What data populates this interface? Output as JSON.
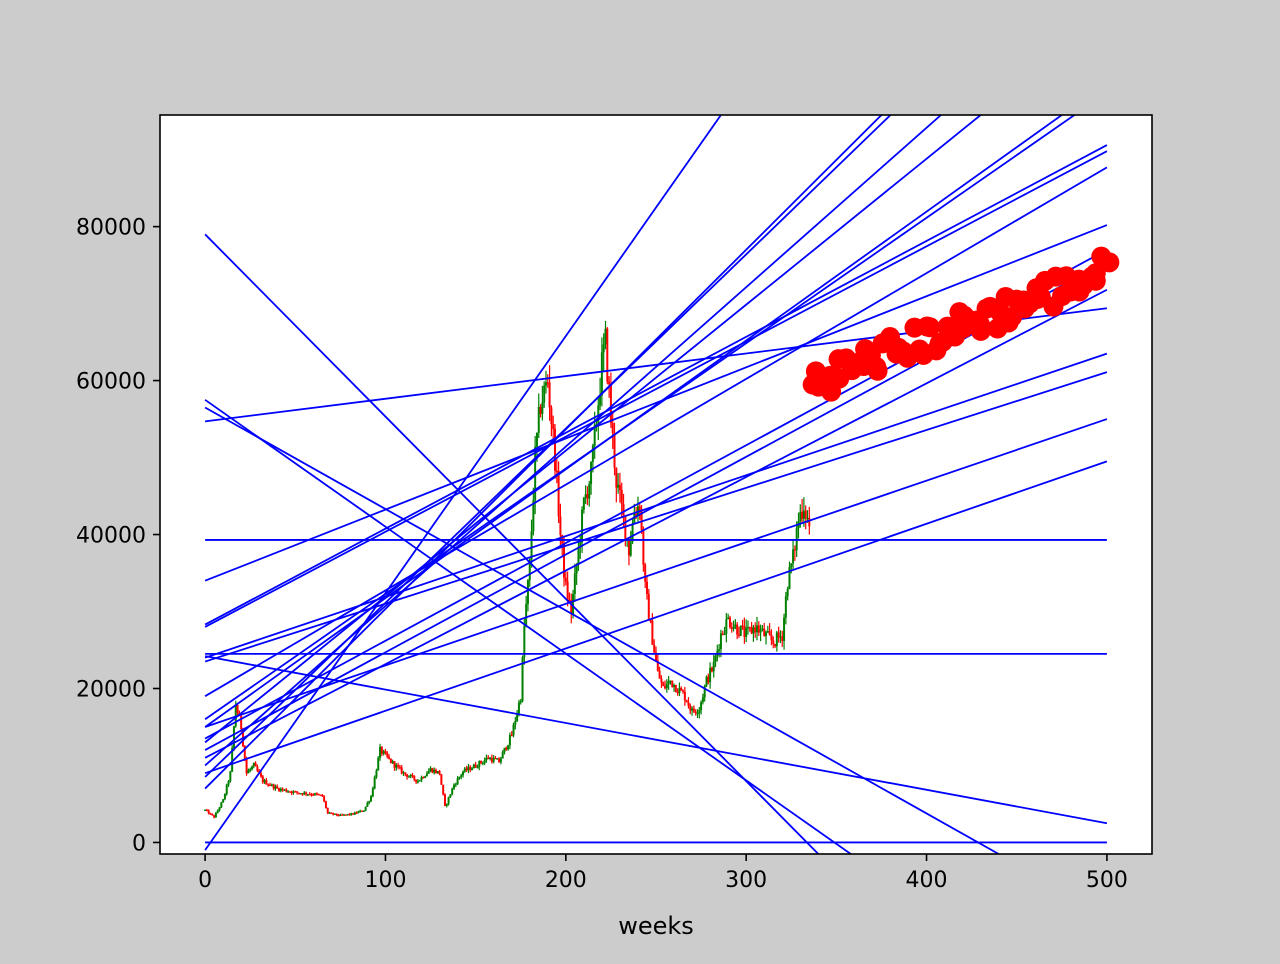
{
  "chart_data": {
    "type": "line",
    "title": "",
    "xlabel": "weeks",
    "ylabel": "",
    "xlim": [
      -25,
      525
    ],
    "ylim": [
      -1500,
      94500
    ],
    "x_ticks": [
      0,
      100,
      200,
      300,
      400,
      500
    ],
    "y_ticks": [
      0,
      20000,
      40000,
      60000,
      80000
    ],
    "grid": false,
    "colors": {
      "up": "#008000",
      "down": "#ff0000",
      "trend": "#0000ff",
      "projection": "#ff0000",
      "background": "#cccccc",
      "axes_face": "#ffffff"
    },
    "price_series_anchors": [
      [
        0,
        4200
      ],
      [
        5,
        3300
      ],
      [
        10,
        5500
      ],
      [
        14,
        9000
      ],
      [
        17,
        18000
      ],
      [
        20,
        15000
      ],
      [
        23,
        9000
      ],
      [
        27,
        10000
      ],
      [
        32,
        8000
      ],
      [
        40,
        7000
      ],
      [
        50,
        6500
      ],
      [
        60,
        6300
      ],
      [
        65,
        6000
      ],
      [
        68,
        3800
      ],
      [
        75,
        3500
      ],
      [
        82,
        3700
      ],
      [
        88,
        4200
      ],
      [
        92,
        6000
      ],
      [
        97,
        12000
      ],
      [
        103,
        10500
      ],
      [
        110,
        9000
      ],
      [
        118,
        8000
      ],
      [
        125,
        9500
      ],
      [
        130,
        9000
      ],
      [
        133,
        4600
      ],
      [
        138,
        7500
      ],
      [
        143,
        9200
      ],
      [
        150,
        10000
      ],
      [
        157,
        11000
      ],
      [
        163,
        10500
      ],
      [
        170,
        14000
      ],
      [
        175,
        19000
      ],
      [
        177,
        28000
      ],
      [
        180,
        36000
      ],
      [
        183,
        50000
      ],
      [
        186,
        57000
      ],
      [
        190,
        60000
      ],
      [
        194,
        50000
      ],
      [
        197,
        40000
      ],
      [
        200,
        33000
      ],
      [
        203,
        30000
      ],
      [
        207,
        38000
      ],
      [
        210,
        44000
      ],
      [
        214,
        48000
      ],
      [
        217,
        55000
      ],
      [
        220,
        62000
      ],
      [
        222,
        65000
      ],
      [
        225,
        55000
      ],
      [
        228,
        47000
      ],
      [
        232,
        42000
      ],
      [
        235,
        38000
      ],
      [
        238,
        43000
      ],
      [
        241,
        44000
      ],
      [
        244,
        33000
      ],
      [
        247,
        28000
      ],
      [
        251,
        22000
      ],
      [
        254,
        20000
      ],
      [
        258,
        21000
      ],
      [
        262,
        20000
      ],
      [
        266,
        19000
      ],
      [
        270,
        17000
      ],
      [
        274,
        17500
      ],
      [
        278,
        21000
      ],
      [
        282,
        23000
      ],
      [
        286,
        27000
      ],
      [
        290,
        29000
      ],
      [
        294,
        28000
      ],
      [
        300,
        27000
      ],
      [
        305,
        28000
      ],
      [
        310,
        27000
      ],
      [
        315,
        26000
      ],
      [
        320,
        27000
      ],
      [
        323,
        34000
      ],
      [
        326,
        37000
      ],
      [
        329,
        42000
      ],
      [
        332,
        44000
      ],
      [
        335,
        41000
      ]
    ],
    "trend_lines": [
      {
        "start": [
          0,
          79000
        ],
        "end": [
          340,
          -1500
        ]
      },
      {
        "start": [
          0,
          57500
        ],
        "end": [
          358,
          -1500
        ]
      },
      {
        "start": [
          0,
          56500
        ],
        "end": [
          440,
          -1500
        ]
      },
      {
        "start": [
          0,
          54700
        ],
        "end": [
          500,
          69400
        ]
      },
      {
        "start": [
          0,
          39300
        ],
        "end": [
          500,
          39300
        ]
      },
      {
        "start": [
          0,
          24500
        ],
        "end": [
          500,
          24500
        ]
      },
      {
        "start": [
          0,
          24200
        ],
        "end": [
          500,
          2500
        ]
      },
      {
        "start": [
          0,
          0
        ],
        "end": [
          500,
          0
        ]
      },
      {
        "start": [
          0,
          -1000
        ],
        "end": [
          286,
          94500
        ]
      },
      {
        "start": [
          0,
          7000
        ],
        "end": [
          375,
          94500
        ]
      },
      {
        "start": [
          0,
          8500
        ],
        "end": [
          380,
          94500
        ]
      },
      {
        "start": [
          0,
          10000
        ],
        "end": [
          408,
          94500
        ]
      },
      {
        "start": [
          0,
          13000
        ],
        "end": [
          430,
          94500
        ]
      },
      {
        "start": [
          0,
          15000
        ],
        "end": [
          475,
          94500
        ]
      },
      {
        "start": [
          0,
          16000
        ],
        "end": [
          482,
          94500
        ]
      },
      {
        "start": [
          0,
          19000
        ],
        "end": [
          500,
          87700
        ]
      },
      {
        "start": [
          0,
          28300
        ],
        "end": [
          500,
          90600
        ]
      },
      {
        "start": [
          0,
          28000
        ],
        "end": [
          500,
          89800
        ]
      },
      {
        "start": [
          0,
          34000
        ],
        "end": [
          500,
          80200
        ]
      },
      {
        "start": [
          0,
          13500
        ],
        "end": [
          500,
          77000
        ]
      },
      {
        "start": [
          0,
          12000
        ],
        "end": [
          500,
          75500
        ]
      },
      {
        "start": [
          0,
          11000
        ],
        "end": [
          500,
          71800
        ]
      },
      {
        "start": [
          0,
          24000
        ],
        "end": [
          500,
          63500
        ]
      },
      {
        "start": [
          0,
          23500
        ],
        "end": [
          500,
          61100
        ]
      },
      {
        "start": [
          0,
          15000
        ],
        "end": [
          500,
          55000
        ]
      },
      {
        "start": [
          0,
          9000
        ],
        "end": [
          500,
          49500
        ]
      }
    ],
    "projection_band": {
      "x_start": 336,
      "x_end": 500,
      "y_start_low": 57500,
      "y_start_high": 62000,
      "y_end_low": 72000,
      "y_end_high": 76500,
      "point_count": 70
    }
  }
}
